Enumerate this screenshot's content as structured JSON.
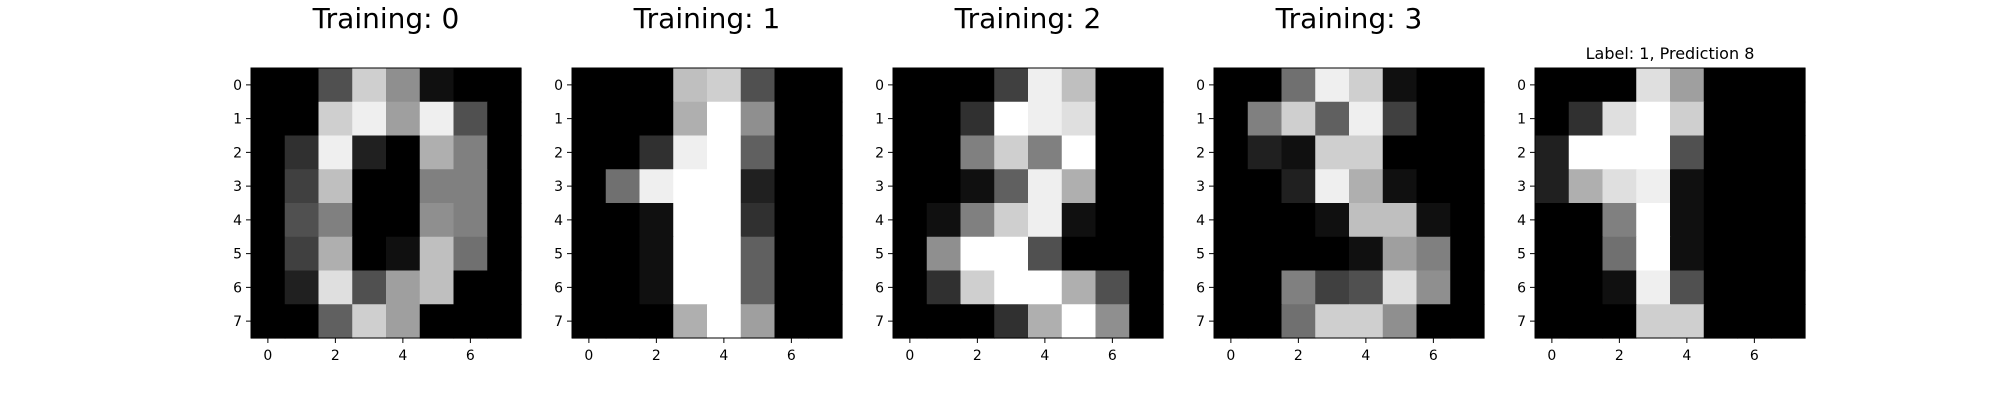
{
  "chart_data": [
    {
      "type": "heatmap",
      "title": "Training: 0",
      "colormap": "gray",
      "vmin": 0,
      "vmax": 16,
      "xticks": [
        0,
        2,
        4,
        6
      ],
      "yticks": [
        0,
        1,
        2,
        3,
        4,
        5,
        6,
        7
      ],
      "values": [
        [
          0,
          0,
          5,
          13,
          9,
          1,
          0,
          0
        ],
        [
          0,
          0,
          13,
          15,
          10,
          15,
          5,
          0
        ],
        [
          0,
          3,
          15,
          2,
          0,
          11,
          8,
          0
        ],
        [
          0,
          4,
          12,
          0,
          0,
          8,
          8,
          0
        ],
        [
          0,
          5,
          8,
          0,
          0,
          9,
          8,
          0
        ],
        [
          0,
          4,
          11,
          0,
          1,
          12,
          7,
          0
        ],
        [
          0,
          2,
          14,
          5,
          10,
          12,
          0,
          0
        ],
        [
          0,
          0,
          6,
          13,
          10,
          0,
          0,
          0
        ]
      ]
    },
    {
      "type": "heatmap",
      "title": "Training: 1",
      "colormap": "gray",
      "vmin": 0,
      "vmax": 16,
      "xticks": [
        0,
        2,
        4,
        6
      ],
      "yticks": [
        0,
        1,
        2,
        3,
        4,
        5,
        6,
        7
      ],
      "values": [
        [
          0,
          0,
          0,
          12,
          13,
          5,
          0,
          0
        ],
        [
          0,
          0,
          0,
          11,
          16,
          9,
          0,
          0
        ],
        [
          0,
          0,
          3,
          15,
          16,
          6,
          0,
          0
        ],
        [
          0,
          7,
          15,
          16,
          16,
          2,
          0,
          0
        ],
        [
          0,
          0,
          1,
          16,
          16,
          3,
          0,
          0
        ],
        [
          0,
          0,
          1,
          16,
          16,
          6,
          0,
          0
        ],
        [
          0,
          0,
          1,
          16,
          16,
          6,
          0,
          0
        ],
        [
          0,
          0,
          0,
          11,
          16,
          10,
          0,
          0
        ]
      ]
    },
    {
      "type": "heatmap",
      "title": "Training: 2",
      "colormap": "gray",
      "vmin": 0,
      "vmax": 16,
      "xticks": [
        0,
        2,
        4,
        6
      ],
      "yticks": [
        0,
        1,
        2,
        3,
        4,
        5,
        6,
        7
      ],
      "values": [
        [
          0,
          0,
          0,
          4,
          15,
          12,
          0,
          0
        ],
        [
          0,
          0,
          3,
          16,
          15,
          14,
          0,
          0
        ],
        [
          0,
          0,
          8,
          13,
          8,
          16,
          0,
          0
        ],
        [
          0,
          0,
          1,
          6,
          15,
          11,
          0,
          0
        ],
        [
          0,
          1,
          8,
          13,
          15,
          1,
          0,
          0
        ],
        [
          0,
          9,
          16,
          16,
          5,
          0,
          0,
          0
        ],
        [
          0,
          3,
          13,
          16,
          16,
          11,
          5,
          0
        ],
        [
          0,
          0,
          0,
          3,
          11,
          16,
          9,
          0
        ]
      ]
    },
    {
      "type": "heatmap",
      "title": "Training: 3",
      "colormap": "gray",
      "vmin": 0,
      "vmax": 16,
      "xticks": [
        0,
        2,
        4,
        6
      ],
      "yticks": [
        0,
        1,
        2,
        3,
        4,
        5,
        6,
        7
      ],
      "values": [
        [
          0,
          0,
          7,
          15,
          13,
          1,
          0,
          0
        ],
        [
          0,
          8,
          13,
          6,
          15,
          4,
          0,
          0
        ],
        [
          0,
          2,
          1,
          13,
          13,
          0,
          0,
          0
        ],
        [
          0,
          0,
          2,
          15,
          11,
          1,
          0,
          0
        ],
        [
          0,
          0,
          0,
          1,
          12,
          12,
          1,
          0
        ],
        [
          0,
          0,
          0,
          0,
          1,
          10,
          8,
          0
        ],
        [
          0,
          0,
          8,
          4,
          5,
          14,
          9,
          0
        ],
        [
          0,
          0,
          7,
          13,
          13,
          9,
          0,
          0
        ]
      ]
    },
    {
      "type": "heatmap",
      "title": "Label: 1, Prediction 8",
      "colormap": "gray",
      "vmin": 0,
      "vmax": 16,
      "xticks": [
        0,
        2,
        4,
        6
      ],
      "yticks": [
        0,
        1,
        2,
        3,
        4,
        5,
        6,
        7
      ],
      "values": [
        [
          0,
          0,
          0,
          14,
          10,
          0,
          0,
          0
        ],
        [
          0,
          3,
          14,
          16,
          13,
          0,
          0,
          0
        ],
        [
          2,
          16,
          16,
          16,
          5,
          0,
          0,
          0
        ],
        [
          2,
          11,
          14,
          15,
          1,
          0,
          0,
          0
        ],
        [
          0,
          0,
          8,
          16,
          1,
          0,
          0,
          0
        ],
        [
          0,
          0,
          7,
          16,
          1,
          0,
          0,
          0
        ],
        [
          0,
          0,
          1,
          15,
          5,
          0,
          0,
          0
        ],
        [
          0,
          0,
          0,
          13,
          13,
          0,
          0,
          0
        ]
      ]
    }
  ]
}
